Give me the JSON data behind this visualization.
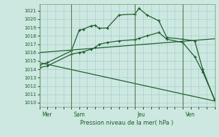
{
  "title": "Pression niveau de la mer( hPa )",
  "bg_color": "#cce8e0",
  "plot_bg_color": "#cce8e0",
  "grid_color": "#aacccc",
  "line_color": "#1a5c28",
  "ylim": [
    1009.5,
    1021.8
  ],
  "yticks": [
    1010,
    1011,
    1012,
    1013,
    1014,
    1015,
    1016,
    1017,
    1018,
    1019,
    1020,
    1021
  ],
  "day_labels": [
    "Mer",
    "Sam",
    "Jeu",
    "Ven"
  ],
  "day_positions": [
    0,
    4,
    12,
    18
  ],
  "xlim": [
    0,
    22
  ],
  "line1_x": [
    0,
    1,
    4,
    5,
    5.5,
    6.5,
    7,
    7.5,
    8.5,
    10,
    12,
    12.5,
    13.5,
    15,
    16,
    18,
    19.5,
    20.5,
    22
  ],
  "line1_y": [
    1014.5,
    1014.8,
    1016.2,
    1018.7,
    1018.8,
    1019.2,
    1019.25,
    1018.9,
    1018.95,
    1020.5,
    1020.6,
    1021.3,
    1020.5,
    1019.8,
    1017.8,
    1017.6,
    1017.4,
    1014.0,
    1010.3
  ],
  "line2_x": [
    0,
    1,
    4,
    5,
    5.5,
    6.5,
    7,
    7.5,
    8.5,
    10,
    12,
    12.5,
    13.5,
    15,
    16,
    18,
    19.5,
    20.5,
    22
  ],
  "line2_y": [
    1014.2,
    1014.4,
    1015.8,
    1016.0,
    1016.1,
    1016.4,
    1016.6,
    1017.0,
    1017.2,
    1017.4,
    1017.55,
    1017.7,
    1018.0,
    1018.4,
    1017.6,
    1017.2,
    1015.5,
    1013.7,
    1010.4
  ],
  "line3_x": [
    0,
    22
  ],
  "line3_y": [
    1016.0,
    1017.65
  ],
  "line4_x": [
    0,
    22
  ],
  "line4_y": [
    1014.8,
    1010.2
  ]
}
